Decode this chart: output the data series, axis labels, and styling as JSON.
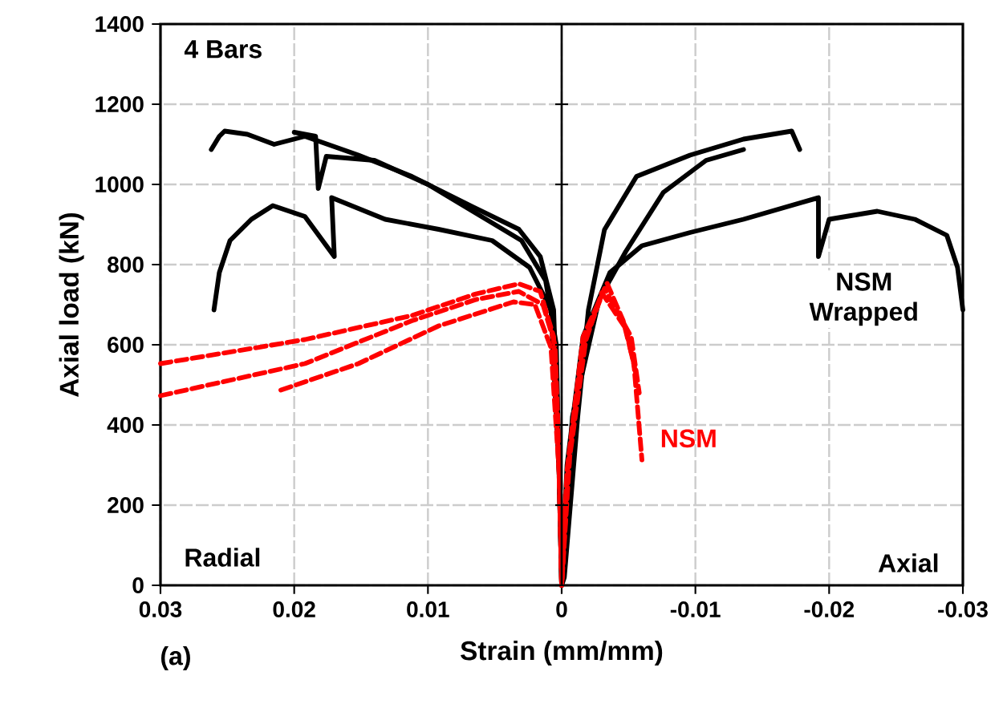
{
  "chart_data": {
    "type": "line",
    "xlabel": "Strain (mm/mm)",
    "ylabel": "Axial load (kN)",
    "annotations": [
      "4 Bars",
      "Radial",
      "Axial",
      "(a)"
    ],
    "xlim": [
      0.03,
      -0.03
    ],
    "xticks": [
      0.03,
      0.02,
      0.01,
      0,
      -0.01,
      -0.02,
      -0.03
    ],
    "ylim": [
      0,
      1400
    ],
    "yticks": [
      0,
      200,
      400,
      600,
      800,
      1000,
      1200,
      1400
    ],
    "grid": true,
    "legend": false,
    "marker": "none",
    "ref_lines": [
      {
        "axis": "x",
        "value": 0,
        "color": "#000000"
      }
    ],
    "series": [
      {
        "color": "#000000",
        "line_style": "solid",
        "x": [
          0.0262,
          0.0256,
          0.0252,
          0.0235,
          0.0215,
          0.0192,
          0.0152,
          0.0112,
          0.0072,
          0.0032,
          0.0016,
          0.0006,
          0.0002,
          0,
          -0.0002,
          -0.0012,
          -0.002,
          -0.0032,
          -0.0056,
          -0.0096,
          -0.0136,
          -0.0172,
          -0.0178
        ],
        "values": [
          1087,
          1120,
          1133,
          1125,
          1100,
          1120,
          1073,
          1020,
          953,
          888,
          820,
          687,
          300,
          0,
          20,
          420,
          687,
          887,
          1020,
          1073,
          1113,
          1133,
          1087
        ]
      },
      {
        "color": "#000000",
        "line_style": "solid",
        "x": [
          0.02,
          0.0184,
          0.0182,
          0.0176,
          0.014,
          0.01,
          0.006,
          0.003,
          0.0012,
          0.0004,
          0,
          -0.0008,
          -0.0028,
          -0.0048,
          -0.0076,
          -0.0108,
          -0.0136
        ],
        "values": [
          1130,
          1120,
          990,
          1070,
          1060,
          1000,
          920,
          860,
          760,
          600,
          0,
          420,
          713,
          833,
          980,
          1060,
          1087
        ]
      },
      {
        "name": "NSM Wrapped",
        "color": "#000000",
        "line_style": "solid",
        "x": [
          0.026,
          0.0256,
          0.0248,
          0.0232,
          0.0216,
          0.0192,
          0.017,
          0.0172,
          0.0132,
          0.0092,
          0.0052,
          0.0024,
          0.0008,
          0.0002,
          0,
          -0.0004,
          -0.0016,
          -0.0036,
          -0.006,
          -0.0096,
          -0.0136,
          -0.0192,
          -0.0192,
          -0.02,
          -0.0236,
          -0.0264,
          -0.0288,
          -0.0296,
          -0.03
        ],
        "values": [
          687,
          780,
          860,
          913,
          947,
          920,
          820,
          967,
          913,
          888,
          860,
          793,
          687,
          287,
          0,
          300,
          620,
          780,
          847,
          880,
          913,
          967,
          820,
          913,
          933,
          913,
          873,
          793,
          687
        ]
      },
      {
        "name": "NSM",
        "color": "#ff0000",
        "line_style": "dashed",
        "x": [
          0.03,
          0.0192,
          0.0112,
          0.0064,
          0.0032,
          0.0016,
          0.0006,
          0.0002,
          0,
          -0.0004,
          -0.0016,
          -0.0034,
          -0.0046,
          -0.0054,
          -0.006
        ],
        "values": [
          553,
          613,
          673,
          727,
          752,
          733,
          620,
          287,
          0,
          287,
          620,
          753,
          660,
          553,
          313
        ]
      },
      {
        "color": "#ff0000",
        "line_style": "dashed",
        "x": [
          0.03,
          0.0192,
          0.0112,
          0.0064,
          0.0032,
          0.0014,
          0.0005,
          0.0001,
          0,
          -0.0005,
          -0.0016,
          -0.0032,
          -0.0052,
          -0.0058
        ],
        "values": [
          473,
          553,
          660,
          713,
          733,
          700,
          600,
          250,
          0,
          300,
          600,
          740,
          620,
          480
        ]
      },
      {
        "color": "#ff0000",
        "line_style": "dashed",
        "x": [
          0.021,
          0.0152,
          0.0092,
          0.0036,
          0.002,
          0.0008,
          0.0002,
          0,
          -0.0006,
          -0.0018,
          -0.003,
          -0.0048,
          -0.0056
        ],
        "values": [
          487,
          553,
          647,
          707,
          700,
          593,
          287,
          0,
          320,
          610,
          730,
          640,
          520
        ]
      }
    ]
  }
}
